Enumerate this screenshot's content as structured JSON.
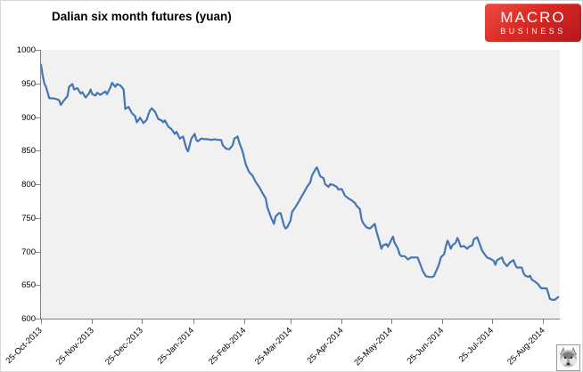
{
  "header": {
    "title": "Dalian six month futures (yuan)"
  },
  "brand": {
    "logo_line1": "MACRO",
    "logo_line2": "BUSINESS",
    "logo_bg": "#d92a24",
    "wolf_icon": "wolf-mascot"
  },
  "chart_data": {
    "type": "line",
    "title": "Dalian six month futures (yuan)",
    "xlabel": "",
    "ylabel": "",
    "legend": "none",
    "grid": false,
    "plot_bg": "#f1f1f1",
    "line_color": "#4576b4",
    "ylim": [
      600,
      1000
    ],
    "y_ticks": [
      1000,
      950,
      900,
      850,
      800,
      750,
      700,
      650,
      600
    ],
    "start_date": "2013-10-25",
    "x_axis_days_total": 314,
    "x_ticks": [
      {
        "day": 0,
        "label": "25-Oct-2013"
      },
      {
        "day": 31,
        "label": "25-Nov-2013"
      },
      {
        "day": 61,
        "label": "25-Dec-2013"
      },
      {
        "day": 92,
        "label": "25-Jan-2014"
      },
      {
        "day": 123,
        "label": "25-Feb-2014"
      },
      {
        "day": 151,
        "label": "25-Mar-2014"
      },
      {
        "day": 182,
        "label": "25-Apr-2014"
      },
      {
        "day": 212,
        "label": "25-May-2014"
      },
      {
        "day": 243,
        "label": "25-Jun-2014"
      },
      {
        "day": 273,
        "label": "25-Jul-2014"
      },
      {
        "day": 304,
        "label": "25-Aug-2014"
      }
    ],
    "series": [
      {
        "name": "Dalian six month futures (yuan)",
        "points": [
          [
            0,
            978
          ],
          [
            1,
            962
          ],
          [
            2,
            950
          ],
          [
            3,
            945
          ],
          [
            5,
            928
          ],
          [
            7,
            928
          ],
          [
            9,
            927
          ],
          [
            11,
            925
          ],
          [
            12,
            918
          ],
          [
            14,
            925
          ],
          [
            16,
            931
          ],
          [
            17,
            945
          ],
          [
            19,
            949
          ],
          [
            20,
            941
          ],
          [
            22,
            943
          ],
          [
            24,
            935
          ],
          [
            25,
            937
          ],
          [
            27,
            929
          ],
          [
            29,
            935
          ],
          [
            30,
            941
          ],
          [
            31,
            934
          ],
          [
            33,
            932
          ],
          [
            34,
            936
          ],
          [
            36,
            933
          ],
          [
            37,
            935
          ],
          [
            39,
            938
          ],
          [
            40,
            934
          ],
          [
            42,
            944
          ],
          [
            43,
            951
          ],
          [
            45,
            945
          ],
          [
            46,
            949
          ],
          [
            48,
            947
          ],
          [
            50,
            941
          ],
          [
            51,
            912
          ],
          [
            53,
            915
          ],
          [
            55,
            906
          ],
          [
            57,
            901
          ],
          [
            58,
            892
          ],
          [
            60,
            899
          ],
          [
            62,
            891
          ],
          [
            64,
            896
          ],
          [
            65,
            904
          ],
          [
            66,
            910
          ],
          [
            67,
            913
          ],
          [
            69,
            908
          ],
          [
            71,
            897
          ],
          [
            73,
            895
          ],
          [
            74,
            892
          ],
          [
            75,
            895
          ],
          [
            77,
            886
          ],
          [
            79,
            882
          ],
          [
            81,
            875
          ],
          [
            82,
            878
          ],
          [
            84,
            868
          ],
          [
            86,
            871
          ],
          [
            88,
            853
          ],
          [
            89,
            849
          ],
          [
            91,
            868
          ],
          [
            93,
            875
          ],
          [
            94,
            866
          ],
          [
            95,
            864
          ],
          [
            97,
            868
          ],
          [
            99,
            867
          ],
          [
            101,
            867
          ],
          [
            103,
            866
          ],
          [
            105,
            867
          ],
          [
            107,
            866
          ],
          [
            109,
            866
          ],
          [
            110,
            858
          ],
          [
            112,
            853
          ],
          [
            114,
            852
          ],
          [
            116,
            858
          ],
          [
            117,
            868
          ],
          [
            119,
            871
          ],
          [
            120,
            862
          ],
          [
            122,
            849
          ],
          [
            124,
            829
          ],
          [
            126,
            818
          ],
          [
            128,
            813
          ],
          [
            130,
            803
          ],
          [
            132,
            796
          ],
          [
            134,
            787
          ],
          [
            136,
            779
          ],
          [
            137,
            766
          ],
          [
            139,
            752
          ],
          [
            141,
            741
          ],
          [
            142,
            752
          ],
          [
            144,
            757
          ],
          [
            145,
            757
          ],
          [
            147,
            739
          ],
          [
            148,
            734
          ],
          [
            149,
            736
          ],
          [
            151,
            746
          ],
          [
            152,
            759
          ],
          [
            154,
            766
          ],
          [
            156,
            774
          ],
          [
            158,
            783
          ],
          [
            159,
            787
          ],
          [
            161,
            796
          ],
          [
            163,
            803
          ],
          [
            164,
            813
          ],
          [
            166,
            822
          ],
          [
            167,
            825
          ],
          [
            169,
            812
          ],
          [
            171,
            809
          ],
          [
            172,
            800
          ],
          [
            174,
            796
          ],
          [
            175,
            800
          ],
          [
            177,
            799
          ],
          [
            179,
            796
          ],
          [
            180,
            792
          ],
          [
            182,
            793
          ],
          [
            184,
            783
          ],
          [
            186,
            779
          ],
          [
            188,
            776
          ],
          [
            190,
            772
          ],
          [
            191,
            768
          ],
          [
            193,
            763
          ],
          [
            194,
            748
          ],
          [
            195,
            742
          ],
          [
            197,
            736
          ],
          [
            199,
            734
          ],
          [
            200,
            736
          ],
          [
            202,
            741
          ],
          [
            203,
            730
          ],
          [
            204,
            722
          ],
          [
            205,
            713
          ],
          [
            206,
            704
          ],
          [
            207,
            709
          ],
          [
            209,
            711
          ],
          [
            210,
            707
          ],
          [
            212,
            717
          ],
          [
            213,
            722
          ],
          [
            214,
            713
          ],
          [
            216,
            704
          ],
          [
            217,
            696
          ],
          [
            218,
            693
          ],
          [
            220,
            693
          ],
          [
            221,
            691
          ],
          [
            222,
            688
          ],
          [
            224,
            691
          ],
          [
            226,
            691
          ],
          [
            228,
            691
          ],
          [
            229,
            684
          ],
          [
            230,
            678
          ],
          [
            231,
            671
          ],
          [
            232,
            667
          ],
          [
            233,
            663
          ],
          [
            235,
            662
          ],
          [
            237,
            662
          ],
          [
            238,
            664
          ],
          [
            239,
            670
          ],
          [
            240,
            675
          ],
          [
            241,
            682
          ],
          [
            242,
            691
          ],
          [
            244,
            696
          ],
          [
            245,
            707
          ],
          [
            246,
            716
          ],
          [
            247,
            711
          ],
          [
            248,
            704
          ],
          [
            249,
            709
          ],
          [
            251,
            713
          ],
          [
            252,
            720
          ],
          [
            253,
            715
          ],
          [
            254,
            707
          ],
          [
            256,
            708
          ],
          [
            258,
            704
          ],
          [
            259,
            707
          ],
          [
            261,
            709
          ],
          [
            262,
            718
          ],
          [
            264,
            721
          ],
          [
            266,
            708
          ],
          [
            267,
            701
          ],
          [
            269,
            694
          ],
          [
            270,
            691
          ],
          [
            272,
            689
          ],
          [
            274,
            686
          ],
          [
            275,
            680
          ],
          [
            276,
            687
          ],
          [
            279,
            691
          ],
          [
            280,
            684
          ],
          [
            282,
            678
          ],
          [
            284,
            684
          ],
          [
            286,
            687
          ],
          [
            287,
            680
          ],
          [
            288,
            676
          ],
          [
            290,
            676
          ],
          [
            291,
            676
          ],
          [
            292,
            668
          ],
          [
            293,
            664
          ],
          [
            295,
            662
          ],
          [
            296,
            664
          ],
          [
            297,
            658
          ],
          [
            299,
            655
          ],
          [
            301,
            651
          ],
          [
            302,
            647
          ],
          [
            303,
            645
          ],
          [
            305,
            645
          ],
          [
            306,
            645
          ],
          [
            307,
            638
          ],
          [
            308,
            629
          ],
          [
            310,
            628
          ],
          [
            311,
            628
          ],
          [
            313,
            632
          ]
        ]
      }
    ]
  }
}
